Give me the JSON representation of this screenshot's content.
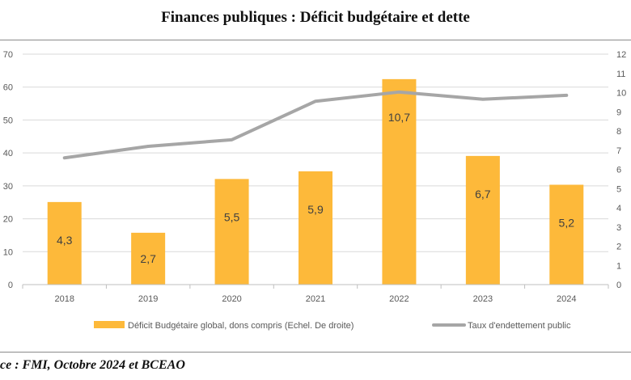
{
  "title": "Finances publiques : Déficit budgétaire et dette",
  "source": "ce : FMI, Octobre 2024 et BCEAO",
  "colors": {
    "bar": "#FDB93A",
    "line": "#A6A6A6",
    "grid": "#D9D9D9",
    "axis": "#BFBFBF"
  },
  "chart_data": {
    "type": "bar",
    "categories": [
      "2018",
      "2019",
      "2020",
      "2021",
      "2022",
      "2023",
      "2024"
    ],
    "series": [
      {
        "name": "Déficit Budgétaire global, dons compris (Echel. De droite)",
        "type": "bar",
        "axis": "right",
        "values": [
          4.3,
          2.7,
          5.5,
          5.9,
          10.7,
          6.7,
          5.2
        ],
        "labels": [
          "4,3",
          "2,7",
          "5,5",
          "5,9",
          "10,7",
          "6,7",
          "5,2"
        ]
      },
      {
        "name": "Taux d'endettement public",
        "type": "line",
        "axis": "left",
        "values": [
          38.5,
          42.0,
          44.0,
          55.7,
          58.5,
          56.3,
          57.5
        ]
      }
    ],
    "y_left": {
      "ylim": [
        0,
        70
      ],
      "ticks": [
        "0",
        "10",
        "20",
        "30",
        "40",
        "50",
        "60",
        "70"
      ]
    },
    "y_right": {
      "ylim": [
        0,
        12
      ],
      "ticks": [
        "0",
        "1",
        "2",
        "3",
        "4",
        "5",
        "6",
        "7",
        "8",
        "9",
        "10",
        "11",
        "12"
      ]
    },
    "grid": true,
    "legend": "bottom"
  }
}
